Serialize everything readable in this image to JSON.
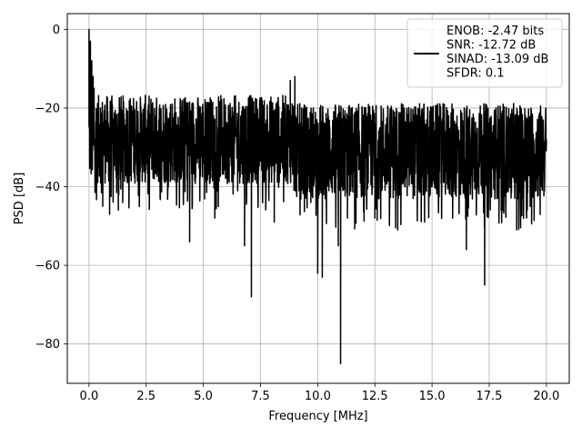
{
  "chart_data": {
    "type": "line",
    "xlabel": "Frequency [MHz]",
    "ylabel": "PSD [dB]",
    "xlim": [
      -0.95,
      21.0
    ],
    "ylim": [
      -90,
      4
    ],
    "xticks": [
      0.0,
      2.5,
      5.0,
      7.5,
      10.0,
      12.5,
      15.0,
      17.5,
      20.0
    ],
    "xtick_labels": [
      "0.0",
      "2.5",
      "5.0",
      "7.5",
      "10.0",
      "12.5",
      "15.0",
      "17.5",
      "20.0"
    ],
    "yticks": [
      0,
      -20,
      -40,
      -60,
      -80
    ],
    "ytick_labels": [
      "0",
      "−20",
      "−40",
      "−60",
      "−80"
    ],
    "grid": true,
    "legend_position": "top-right",
    "series": [
      {
        "name": "ENOB: -2.47 bits\nSNR: -12.72 dB\nSINAD: -13.09 dB\nSFDR: 0.1",
        "color": "#000000",
        "x_range": [
          0.0,
          20.0
        ],
        "noise_floor_segments": [
          {
            "x_start": 0.0,
            "x_end": 9.0,
            "mean": -28.0,
            "spread": [
              -40.0,
              -15.0
            ]
          },
          {
            "x_start": 9.0,
            "x_end": 20.0,
            "mean": -31.0,
            "spread": [
              -45.0,
              -18.0
            ]
          }
        ],
        "points": [
          [
            0.0,
            0.0
          ],
          [
            0.02,
            -5.0
          ],
          [
            0.04,
            -14.0
          ],
          [
            0.06,
            -3.0
          ],
          [
            0.09,
            -21.0
          ],
          [
            0.12,
            -8.0
          ],
          [
            0.15,
            -25.0
          ],
          [
            0.18,
            -12.0
          ],
          [
            0.22,
            -15.0
          ],
          [
            0.3,
            -28.0
          ],
          [
            0.38,
            -35.0
          ],
          [
            0.5,
            -20.0
          ],
          [
            0.6,
            -45.0
          ],
          [
            0.9,
            -47.0
          ],
          [
            1.3,
            -42.0
          ],
          [
            4.4,
            -54.0
          ],
          [
            5.5,
            -48.0
          ],
          [
            6.8,
            -55.0
          ],
          [
            7.1,
            -68.0
          ],
          [
            8.1,
            -49.0
          ],
          [
            8.8,
            -13.0
          ],
          [
            9.0,
            -12.0
          ],
          [
            9.3,
            -20.0
          ],
          [
            9.7,
            -44.0
          ],
          [
            10.0,
            -62.0
          ],
          [
            10.2,
            -63.0
          ],
          [
            10.9,
            -55.0
          ],
          [
            11.0,
            -85.0
          ],
          [
            11.3,
            -48.0
          ],
          [
            12.5,
            -48.0
          ],
          [
            13.5,
            -51.0
          ],
          [
            15.9,
            -48.0
          ],
          [
            16.5,
            -56.0
          ],
          [
            17.3,
            -65.0
          ],
          [
            18.7,
            -51.0
          ],
          [
            20.0,
            -28.0
          ]
        ]
      }
    ]
  }
}
